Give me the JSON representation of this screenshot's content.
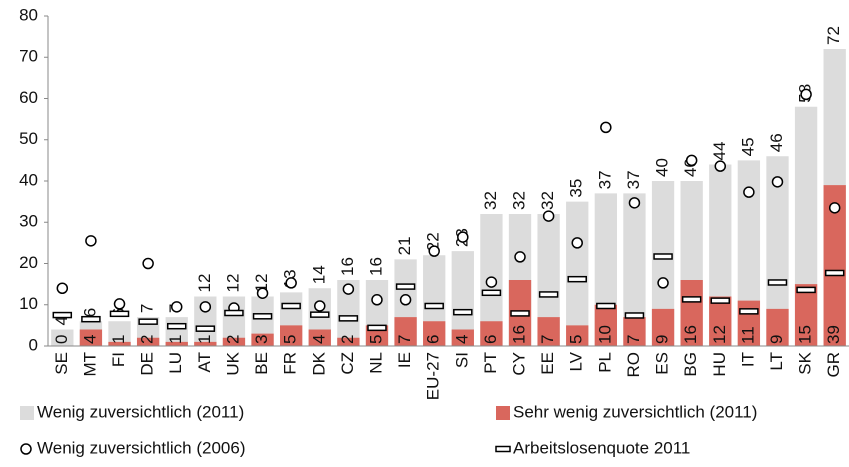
{
  "chart_data": {
    "type": "bar",
    "categories": [
      "SE",
      "MT",
      "FI",
      "DE",
      "LU",
      "AT",
      "UK",
      "BE",
      "FR",
      "DK",
      "CZ",
      "NL",
      "IE",
      "EU-27",
      "SI",
      "PT",
      "CY",
      "EE",
      "LV",
      "PL",
      "RO",
      "ES",
      "BG",
      "HU",
      "IT",
      "LT",
      "SK",
      "GR"
    ],
    "series": [
      {
        "name": "Wenig zuversichtlich (2011)",
        "style": "bar",
        "color": "#dcdcdc",
        "values": [
          4,
          6,
          6,
          7,
          7,
          12,
          12,
          12,
          13,
          14,
          16,
          16,
          21,
          22,
          23,
          32,
          32,
          32,
          35,
          37,
          37,
          40,
          40,
          44,
          45,
          46,
          58,
          72
        ]
      },
      {
        "name": "Sehr wenig zuversichtlich (2011)",
        "style": "bar",
        "color": "#d9675d",
        "values": [
          0,
          4,
          1,
          2,
          1,
          1,
          2,
          3,
          5,
          4,
          2,
          5,
          7,
          6,
          4,
          6,
          16,
          7,
          5,
          10,
          7,
          9,
          16,
          12,
          11,
          9,
          15,
          39
        ]
      },
      {
        "name": "Wenig zuversichtlich (2006)",
        "style": "circle",
        "color": "#000000",
        "values": [
          14,
          25.5,
          10.2,
          20,
          9.5,
          9.5,
          9.2,
          12.8,
          15.3,
          9.7,
          13.8,
          11.2,
          11.2,
          23,
          26.4,
          15.5,
          21.6,
          31.5,
          25,
          53,
          34.7,
          15.3,
          45,
          43.6,
          37.3,
          39.8,
          61,
          33.5
        ]
      },
      {
        "name": "Arbeitslosenquote 2011",
        "style": "dash",
        "color": "#000000",
        "values": [
          7.5,
          6.5,
          7.8,
          5.9,
          4.8,
          4.2,
          8,
          7.2,
          9.7,
          7.6,
          6.7,
          4.4,
          14.4,
          9.7,
          8.2,
          12.9,
          7.9,
          12.5,
          16.2,
          9.7,
          7.4,
          21.7,
          11.3,
          11,
          8.4,
          15.4,
          13.6,
          17.7
        ]
      }
    ],
    "ylim": [
      0,
      80
    ],
    "yticks": [
      0,
      10,
      20,
      30,
      40,
      50,
      60,
      70,
      80
    ],
    "grid": false
  }
}
